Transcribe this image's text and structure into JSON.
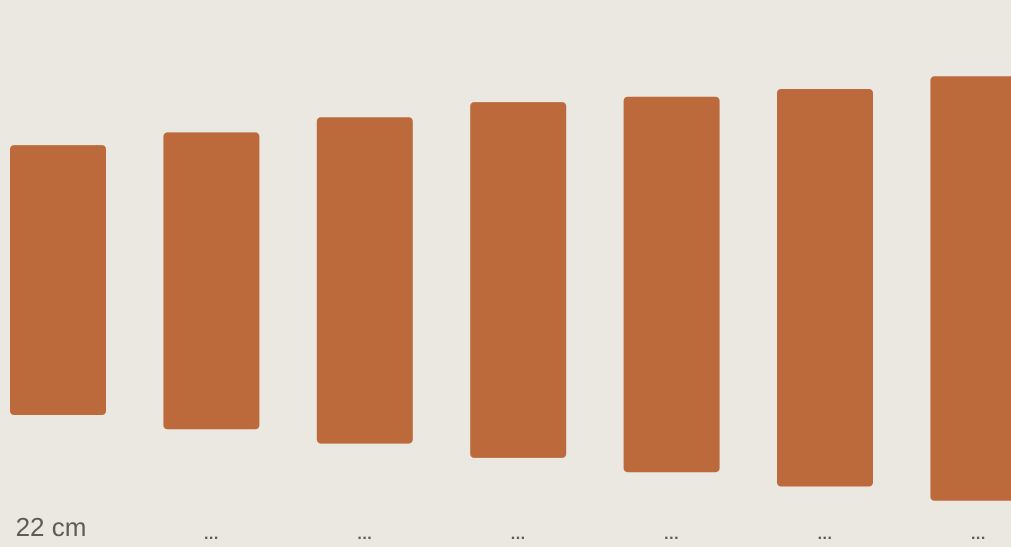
{
  "chart_data": {
    "type": "bar",
    "title": "",
    "xlabel": "",
    "ylabel": "",
    "categories": [
      "22 cm",
      "...",
      "...",
      "...",
      "...",
      "...",
      "..."
    ],
    "values": [
      22,
      24.2,
      26.6,
      29.0,
      30.6,
      32.4,
      34.6
    ],
    "colors": {
      "bar": "#bc6a3c",
      "background": "#ebe8e1",
      "label": "#5f5b55"
    },
    "grid": false,
    "legend": "none"
  }
}
